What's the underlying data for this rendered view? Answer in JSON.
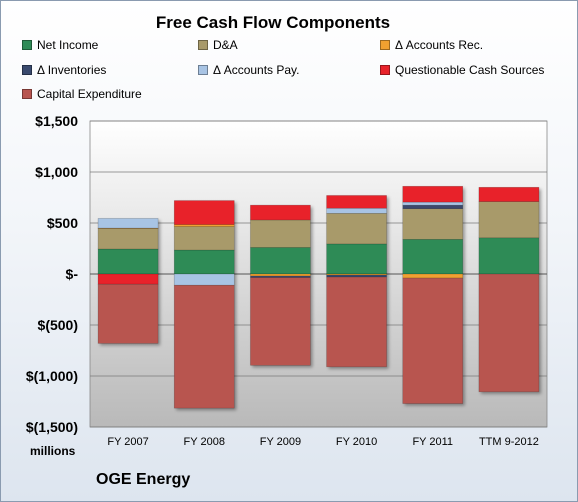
{
  "chart_data": {
    "type": "bar",
    "stacked": true,
    "title": "Free Cash Flow Components",
    "units_label": "millions",
    "company": "OGE Energy",
    "categories": [
      "FY 2007",
      "FY 2008",
      "FY 2009",
      "FY 2010",
      "FY 2011",
      "TTM 9-2012"
    ],
    "ylim": [
      -1500,
      1500
    ],
    "y_ticks": [
      1500,
      1000,
      500,
      0,
      -500,
      -1000,
      -1500
    ],
    "y_tick_labels": [
      "$1,500",
      "$1,000",
      "$500",
      "$-",
      "$(500)",
      "$(1,000)",
      "$(1,500)"
    ],
    "grid": true,
    "legend_position": "top",
    "series": [
      {
        "name": "Net Income",
        "color": "#2e8b57",
        "values": [
          245,
          235,
          260,
          295,
          340,
          355
        ]
      },
      {
        "name": "D&A",
        "color": "#a89a6a",
        "values": [
          200,
          230,
          270,
          300,
          300,
          355
        ]
      },
      {
        "name": "Δ Accounts Rec.",
        "color": "#f0a030",
        "values": [
          5,
          20,
          -20,
          -10,
          -40,
          0
        ]
      },
      {
        "name": "Δ Inventories",
        "color": "#3a4a6e",
        "values": [
          0,
          0,
          -15,
          -20,
          35,
          0
        ]
      },
      {
        "name": "Δ Accounts Pay.",
        "color": "#a8c4e4",
        "values": [
          95,
          -110,
          0,
          50,
          30,
          0
        ]
      },
      {
        "name": "Questionable Cash Sources",
        "color": "#e8232b",
        "values": [
          -100,
          235,
          145,
          125,
          155,
          140
        ]
      },
      {
        "name": "Capital Expenditure",
        "color": "#b85550",
        "values": [
          -580,
          -1205,
          -860,
          -880,
          -1230,
          -1155
        ]
      }
    ]
  }
}
